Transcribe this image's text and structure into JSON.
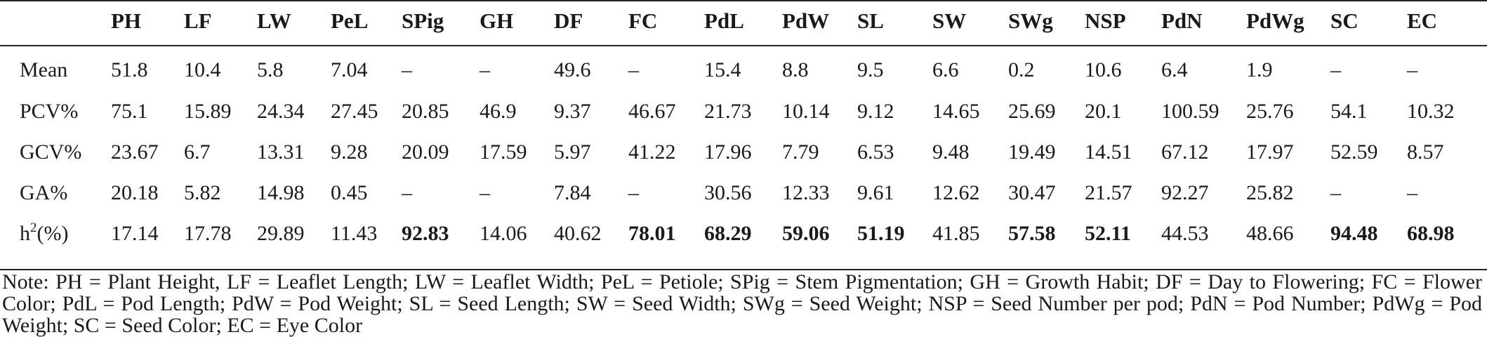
{
  "table": {
    "columns": [
      "PH",
      "LF",
      "LW",
      "PeL",
      "SPig",
      "GH",
      "DF",
      "FC",
      "PdL",
      "PdW",
      "SL",
      "SW",
      "SWg",
      "NSP",
      "PdN",
      "PdWg",
      "SC",
      "EC"
    ],
    "rows": [
      {
        "label": "Mean",
        "values": [
          "51.8",
          "10.4",
          "5.8",
          "7.04",
          "–",
          "–",
          "49.6",
          "–",
          "15.4",
          "8.8",
          "9.5",
          "6.6",
          "0.2",
          "10.6",
          "6.4",
          "1.9",
          "–",
          "–"
        ]
      },
      {
        "label": "PCV%",
        "values": [
          "75.1",
          "15.89",
          "24.34",
          "27.45",
          "20.85",
          "46.9",
          "9.37",
          "46.67",
          "21.73",
          "10.14",
          "9.12",
          "14.65",
          "25.69",
          "20.1",
          "100.59",
          "25.76",
          "54.1",
          "10.32"
        ]
      },
      {
        "label": "GCV%",
        "values": [
          "23.67",
          "6.7",
          "13.31",
          "9.28",
          "20.09",
          "17.59",
          "5.97",
          "41.22",
          "17.96",
          "7.79",
          "6.53",
          "9.48",
          "19.49",
          "14.51",
          "67.12",
          "17.97",
          "52.59",
          "8.57"
        ]
      },
      {
        "label": "GA%",
        "values": [
          "20.18",
          "5.82",
          "14.98",
          "0.45",
          "–",
          "–",
          "7.84",
          "–",
          "30.56",
          "12.33",
          "9.61",
          "12.62",
          "30.47",
          "21.57",
          "92.27",
          "25.82",
          "–",
          "–"
        ]
      },
      {
        "label_base": "h",
        "label_sup": "2",
        "label_rest": "(%)",
        "values": [
          "17.14",
          "17.78",
          "29.89",
          "11.43",
          "92.83",
          "14.06",
          "40.62",
          "78.01",
          "68.29",
          "59.06",
          "51.19",
          "41.85",
          "57.58",
          "52.11",
          "44.53",
          "48.66",
          "94.48",
          "68.98"
        ],
        "bold": [
          false,
          false,
          false,
          false,
          true,
          false,
          false,
          true,
          true,
          true,
          true,
          false,
          true,
          true,
          false,
          false,
          true,
          true
        ]
      }
    ]
  },
  "note": "Note: PH = Plant Height, LF = Leaflet Length; LW = Leaflet Width; PeL = Petiole; SPig = Stem Pigmentation; GH = Growth Habit; DF = Day to Flowering; FC = Flower Color; PdL = Pod Length; PdW = Pod Weight; SL = Seed Length; SW = Seed Width; SWg = Seed Weight; NSP = Seed Number per pod; PdN = Pod Number; PdWg = Pod Weight; SC = Seed Color; EC = Eye Color"
}
